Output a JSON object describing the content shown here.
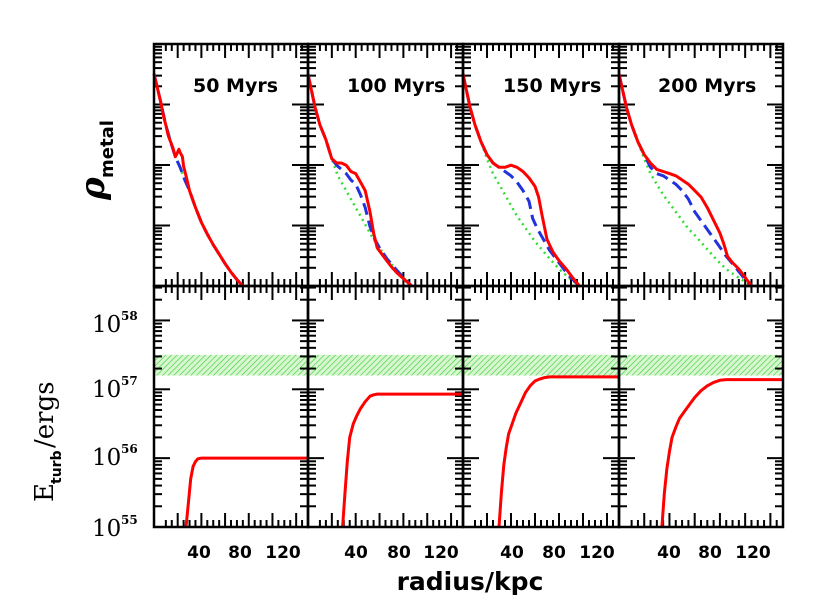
{
  "chart_data": [
    {
      "type": "line",
      "row": "metal density",
      "ylabel": "ρ",
      "ylabel_sub": "metal",
      "xlim": [
        0,
        130
      ],
      "yrange": [
        0,
        1
      ],
      "log_scale": true,
      "panels": [
        {
          "title": "50 Myrs",
          "series": [
            {
              "color": "#ff0000",
              "style": "solid",
              "x": [
                0,
                3,
                6,
                8,
                10,
                12,
                14,
                16,
                18,
                19,
                21,
                22,
                24,
                25,
                27,
                30,
                35,
                40,
                45,
                50,
                55,
                60,
                65,
                70,
                75
              ],
              "y": [
                1.0,
                0.93,
                0.86,
                0.8,
                0.76,
                0.71,
                0.68,
                0.65,
                0.61,
                0.62,
                0.645,
                0.63,
                0.61,
                0.565,
                0.52,
                0.45,
                0.37,
                0.3,
                0.245,
                0.195,
                0.15,
                0.105,
                0.065,
                0.03,
                0.0
              ]
            },
            {
              "color": "#2233dd",
              "style": "dashed",
              "x": [
                0,
                3,
                6,
                10,
                14,
                18,
                22,
                26,
                30,
                35,
                40,
                45,
                50,
                55,
                60,
                65,
                70,
                75
              ],
              "y": [
                1.0,
                0.93,
                0.86,
                0.76,
                0.68,
                0.61,
                0.56,
                0.5,
                0.45,
                0.37,
                0.3,
                0.245,
                0.195,
                0.15,
                0.105,
                0.065,
                0.03,
                0.0
              ]
            },
            {
              "color": "#33dd33",
              "style": "dotted",
              "x": [
                0,
                3,
                6,
                10,
                14,
                18,
                22,
                26,
                30,
                35,
                40,
                45,
                50,
                55,
                60,
                65,
                70,
                75
              ],
              "y": [
                1.0,
                0.93,
                0.86,
                0.76,
                0.68,
                0.61,
                0.56,
                0.5,
                0.45,
                0.37,
                0.3,
                0.245,
                0.195,
                0.15,
                0.105,
                0.065,
                0.03,
                0.0
              ]
            }
          ]
        },
        {
          "title": "100 Myrs",
          "series": [
            {
              "color": "#ff0000",
              "style": "solid",
              "x": [
                0,
                3,
                6,
                10,
                15,
                20,
                24,
                28,
                32,
                36,
                40,
                45,
                48,
                52,
                55,
                58,
                62,
                66,
                70,
                75,
                80,
                87
              ],
              "y": [
                1.0,
                0.92,
                0.84,
                0.76,
                0.69,
                0.6,
                0.58,
                0.58,
                0.57,
                0.54,
                0.53,
                0.48,
                0.45,
                0.35,
                0.25,
                0.18,
                0.15,
                0.12,
                0.09,
                0.06,
                0.035,
                0.0
              ]
            },
            {
              "color": "#2233dd",
              "style": "dashed",
              "x": [
                0,
                3,
                6,
                10,
                15,
                20,
                24,
                28,
                32,
                36,
                40,
                44,
                48,
                52,
                56,
                60,
                66,
                72,
                80,
                87
              ],
              "y": [
                1.0,
                0.92,
                0.84,
                0.76,
                0.69,
                0.6,
                0.57,
                0.55,
                0.53,
                0.5,
                0.48,
                0.43,
                0.37,
                0.28,
                0.22,
                0.18,
                0.13,
                0.09,
                0.04,
                0.0
              ]
            },
            {
              "color": "#33dd33",
              "style": "dotted",
              "x": [
                0,
                3,
                6,
                10,
                15,
                20,
                25,
                30,
                35,
                40,
                45,
                50,
                55,
                60,
                66,
                72,
                80,
                87
              ],
              "y": [
                1.0,
                0.92,
                0.84,
                0.76,
                0.69,
                0.6,
                0.52,
                0.47,
                0.42,
                0.37,
                0.32,
                0.27,
                0.22,
                0.18,
                0.13,
                0.09,
                0.04,
                0.0
              ]
            }
          ]
        },
        {
          "title": "150 Myrs",
          "series": [
            {
              "color": "#ff0000",
              "style": "solid",
              "x": [
                0,
                3,
                6,
                10,
                15,
                20,
                25,
                30,
                35,
                40,
                45,
                50,
                55,
                60,
                63,
                66,
                70,
                75,
                80,
                86,
                92,
                97
              ],
              "y": [
                1.0,
                0.92,
                0.84,
                0.76,
                0.68,
                0.62,
                0.58,
                0.56,
                0.56,
                0.57,
                0.56,
                0.54,
                0.51,
                0.47,
                0.42,
                0.33,
                0.22,
                0.16,
                0.12,
                0.08,
                0.035,
                0.0
              ]
            },
            {
              "color": "#2233dd",
              "style": "dashed",
              "x": [
                0,
                3,
                6,
                10,
                15,
                20,
                25,
                30,
                35,
                40,
                45,
                50,
                55,
                58,
                62,
                66,
                72,
                80,
                88,
                97
              ],
              "y": [
                1.0,
                0.92,
                0.84,
                0.76,
                0.68,
                0.62,
                0.58,
                0.56,
                0.54,
                0.52,
                0.49,
                0.45,
                0.4,
                0.32,
                0.27,
                0.23,
                0.17,
                0.11,
                0.05,
                0.0
              ]
            },
            {
              "color": "#33dd33",
              "style": "dotted",
              "x": [
                0,
                3,
                6,
                10,
                15,
                20,
                25,
                30,
                35,
                40,
                45,
                50,
                55,
                60,
                66,
                72,
                80,
                88,
                97
              ],
              "y": [
                1.0,
                0.92,
                0.84,
                0.76,
                0.68,
                0.6,
                0.53,
                0.48,
                0.43,
                0.38,
                0.33,
                0.29,
                0.25,
                0.21,
                0.17,
                0.13,
                0.08,
                0.04,
                0.0
              ]
            }
          ]
        },
        {
          "title": "200 Myrs",
          "series": [
            {
              "color": "#ff0000",
              "style": "solid",
              "x": [
                0,
                3,
                6,
                10,
                15,
                20,
                25,
                30,
                35,
                40,
                45,
                50,
                55,
                60,
                65,
                70,
                75,
                80,
                83,
                86,
                90,
                95,
                100,
                105
              ],
              "y": [
                1.0,
                0.92,
                0.84,
                0.76,
                0.68,
                0.62,
                0.58,
                0.55,
                0.54,
                0.53,
                0.52,
                0.5,
                0.48,
                0.45,
                0.42,
                0.37,
                0.31,
                0.25,
                0.2,
                0.14,
                0.11,
                0.08,
                0.04,
                0.0
              ]
            },
            {
              "color": "#2233dd",
              "style": "dashed",
              "x": [
                0,
                3,
                6,
                10,
                15,
                20,
                25,
                30,
                35,
                40,
                45,
                50,
                55,
                60,
                66,
                72,
                78,
                85,
                92,
                100,
                105
              ],
              "y": [
                1.0,
                0.92,
                0.84,
                0.76,
                0.68,
                0.62,
                0.56,
                0.53,
                0.52,
                0.5,
                0.48,
                0.45,
                0.41,
                0.35,
                0.3,
                0.25,
                0.2,
                0.14,
                0.09,
                0.03,
                0.0
              ]
            },
            {
              "color": "#33dd33",
              "style": "dotted",
              "x": [
                0,
                3,
                6,
                10,
                15,
                20,
                25,
                30,
                35,
                40,
                45,
                50,
                55,
                60,
                66,
                72,
                78,
                85,
                92,
                100,
                105
              ],
              "y": [
                1.0,
                0.92,
                0.84,
                0.76,
                0.68,
                0.6,
                0.53,
                0.48,
                0.43,
                0.39,
                0.35,
                0.31,
                0.27,
                0.24,
                0.2,
                0.16,
                0.12,
                0.08,
                0.05,
                0.02,
                0.0
              ]
            }
          ]
        }
      ]
    },
    {
      "type": "line",
      "row": "turbulent energy",
      "ylabel": "E",
      "ylabel_sub": "turb",
      "ylabel_rest": "/ergs",
      "xlabel": "radius/kpc",
      "xlim": [
        0,
        130
      ],
      "ylim_log10": [
        55,
        58.5
      ],
      "log_scale": true,
      "x_ticklabels": [
        "40",
        "80",
        "120"
      ],
      "x_tickvalues": [
        40,
        80,
        120
      ],
      "y_ticklabels": [
        {
          "base": "10",
          "exp": "55"
        },
        {
          "base": "10",
          "exp": "56"
        },
        {
          "base": "10",
          "exp": "57"
        },
        {
          "base": "10",
          "exp": "58"
        }
      ],
      "y_tickvalues": [
        55,
        56,
        57,
        58
      ],
      "shaded_band": {
        "color": "#33cc33",
        "log10_range": [
          57.2,
          57.5
        ]
      },
      "panels": [
        {
          "series": [
            {
              "color": "#ff0000",
              "style": "solid",
              "x": [
                27,
                29,
                31,
                33,
                35,
                37,
                40,
                130
              ],
              "y": [
                55.0,
                55.35,
                55.7,
                55.88,
                55.95,
                55.99,
                56.0,
                56.0
              ]
            }
          ]
        },
        {
          "series": [
            {
              "color": "#ff0000",
              "style": "solid",
              "x": [
                29,
                31,
                33,
                35,
                38,
                41,
                44,
                48,
                52,
                55,
                58,
                130
              ],
              "y": [
                55.0,
                55.5,
                55.95,
                56.3,
                56.5,
                56.62,
                56.72,
                56.82,
                56.9,
                56.92,
                56.93,
                56.93
              ]
            }
          ]
        },
        {
          "series": [
            {
              "color": "#ff0000",
              "style": "solid",
              "x": [
                30,
                32,
                34,
                36,
                38,
                41,
                44,
                48,
                52,
                56,
                60,
                64,
                68,
                72,
                130
              ],
              "y": [
                55.0,
                55.5,
                55.9,
                56.15,
                56.35,
                56.5,
                56.65,
                56.8,
                56.95,
                57.05,
                57.12,
                57.15,
                57.17,
                57.18,
                57.18
              ]
            }
          ]
        },
        {
          "series": [
            {
              "color": "#ff0000",
              "style": "solid",
              "x": [
                34,
                36,
                38,
                40,
                42,
                45,
                48,
                52,
                56,
                60,
                65,
                70,
                75,
                80,
                85,
                130
              ],
              "y": [
                55.0,
                55.5,
                55.85,
                56.1,
                56.3,
                56.45,
                56.58,
                56.68,
                56.78,
                56.88,
                56.98,
                57.05,
                57.1,
                57.13,
                57.14,
                57.14
              ]
            }
          ]
        }
      ]
    }
  ]
}
